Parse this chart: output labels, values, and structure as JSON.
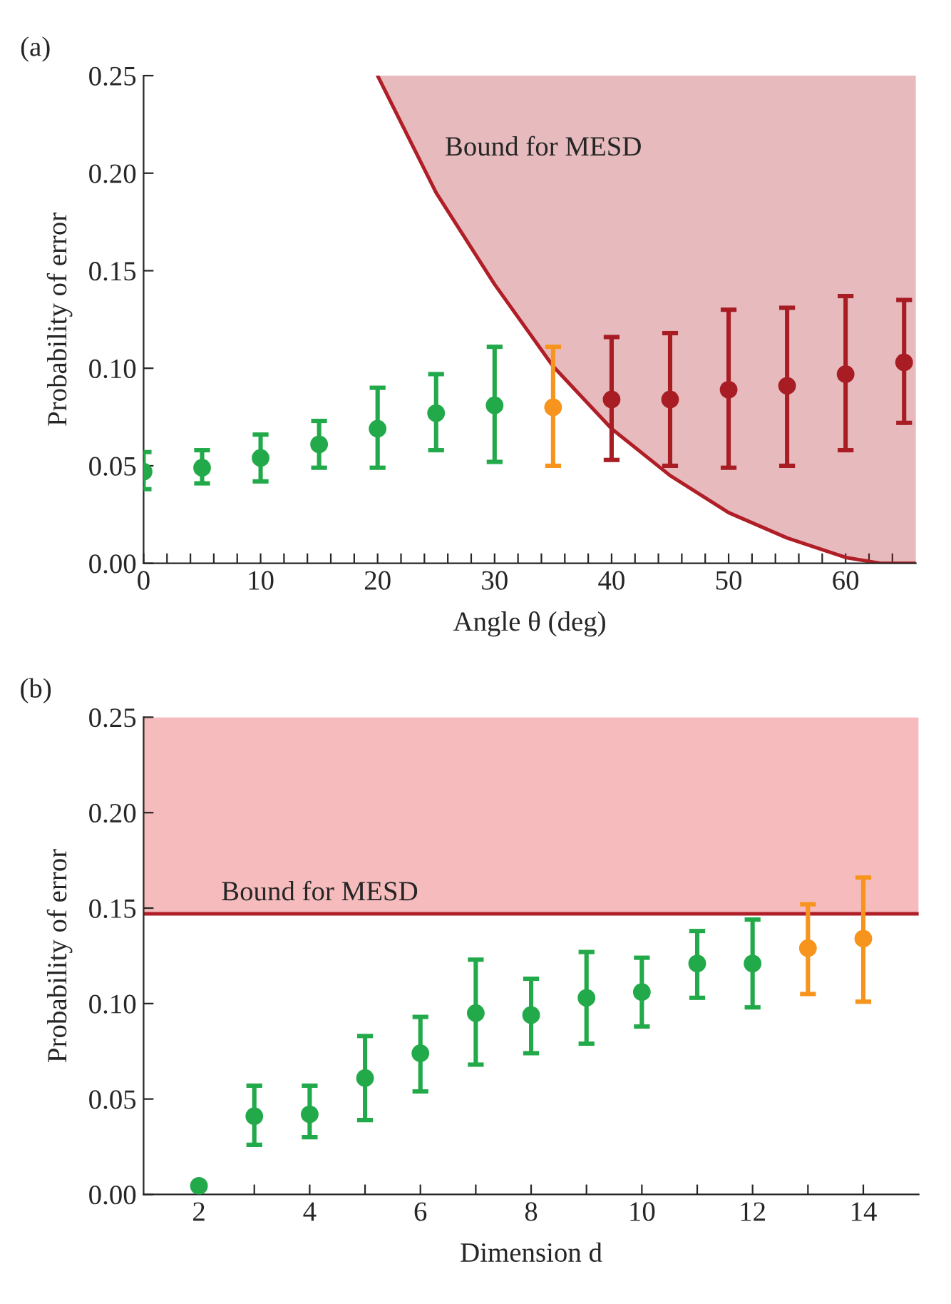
{
  "chart_data": [
    {
      "type": "scatter",
      "title": "(a)",
      "xlabel": "Angle θ (deg)",
      "ylabel": "Probability of error",
      "xlim": [
        0,
        66
      ],
      "ylim": [
        0,
        0.25
      ],
      "xticks": [
        0,
        {
          "value": 2,
          "label": null
        },
        {
          "value": 4,
          "label": null
        },
        {
          "value": 6,
          "label": null
        },
        {
          "value": 8,
          "label": null
        },
        10,
        {
          "value": 12,
          "label": null
        },
        {
          "value": 14,
          "label": null
        },
        {
          "value": 16,
          "label": null
        },
        {
          "value": 18,
          "label": null
        },
        20,
        {
          "value": 22,
          "label": null
        },
        {
          "value": 24,
          "label": null
        },
        {
          "value": 26,
          "label": null
        },
        {
          "value": 28,
          "label": null
        },
        30,
        {
          "value": 32,
          "label": null
        },
        {
          "value": 34,
          "label": null
        },
        {
          "value": 36,
          "label": null
        },
        {
          "value": 38,
          "label": null
        },
        40,
        {
          "value": 42,
          "label": null
        },
        {
          "value": 44,
          "label": null
        },
        {
          "value": 46,
          "label": null
        },
        {
          "value": 48,
          "label": null
        },
        50,
        {
          "value": 52,
          "label": null
        },
        {
          "value": 54,
          "label": null
        },
        {
          "value": 56,
          "label": null
        },
        {
          "value": 58,
          "label": null
        },
        60,
        {
          "value": 62,
          "label": null
        },
        {
          "value": 64,
          "label": null
        }
      ],
      "yticks": [
        {
          "value": 0,
          "label": "0.00"
        },
        {
          "value": 0.05,
          "label": "0.05"
        },
        {
          "value": 0.1,
          "label": "0.10"
        },
        {
          "value": 0.15,
          "label": "0.15"
        },
        {
          "value": 0.2,
          "label": "0.20"
        },
        {
          "value": 0.25,
          "label": "0.25"
        }
      ],
      "grid": false,
      "legend": false,
      "marker": "circle",
      "series": [
        {
          "type": "line",
          "marker": "none",
          "color": "#b01f27",
          "x": [
            20,
            25,
            30,
            35,
            40,
            45,
            50,
            55,
            60,
            63,
            66
          ],
          "values": [
            0.25,
            0.19,
            0.143,
            0.101,
            0.069,
            0.045,
            0.026,
            0.013,
            0.003,
            0,
            0
          ],
          "lower": [
            0.25,
            0.19,
            0.143,
            0.101,
            0.069,
            0.045,
            0.026,
            0.013,
            0.003,
            0,
            0
          ],
          "upper": [
            0.25,
            0.25,
            0.25,
            0.25,
            0.25,
            0.25,
            0.25,
            0.25,
            0.25,
            0.25,
            0.25
          ]
        },
        {
          "color": "#22aa4a",
          "x": [
            0,
            5,
            10,
            15,
            20,
            25,
            30
          ],
          "values": [
            0.047,
            0.049,
            0.054,
            0.061,
            0.069,
            0.077,
            0.081
          ],
          "errors": [
            [
              0.038,
              0.057
            ],
            [
              0.041,
              0.058
            ],
            [
              0.042,
              0.066
            ],
            [
              0.049,
              0.073
            ],
            [
              0.049,
              0.09
            ],
            [
              0.058,
              0.097
            ],
            [
              0.052,
              0.111
            ]
          ]
        },
        {
          "color": "#f7941d",
          "x": [
            35
          ],
          "values": [
            0.08
          ],
          "errors": [
            [
              0.05,
              0.111
            ]
          ]
        },
        {
          "color": "#a81c24",
          "x": [
            40,
            45,
            50,
            55,
            60,
            65
          ],
          "values": [
            0.084,
            0.084,
            0.089,
            0.091,
            0.097,
            0.103
          ],
          "errors": [
            [
              0.053,
              0.116
            ],
            [
              0.05,
              0.118
            ],
            [
              0.049,
              0.13
            ],
            [
              0.05,
              0.131
            ],
            [
              0.058,
              0.137
            ],
            [
              0.072,
              0.135
            ]
          ]
        }
      ],
      "annotations": [
        "Bound for MESD"
      ]
    },
    {
      "type": "scatter",
      "title": "(b)",
      "xlabel": "Dimension d",
      "ylabel": "Probability of error",
      "xlim": [
        1,
        15
      ],
      "ylim": [
        0,
        0.25
      ],
      "xticks": [
        2,
        {
          "value": 3,
          "label": null
        },
        4,
        {
          "value": 5,
          "label": null
        },
        6,
        {
          "value": 7,
          "label": null
        },
        8,
        {
          "value": 9,
          "label": null
        },
        10,
        {
          "value": 11,
          "label": null
        },
        12,
        {
          "value": 13,
          "label": null
        },
        14
      ],
      "yticks": [
        {
          "value": 0,
          "label": "0.00"
        },
        {
          "value": 0.05,
          "label": "0.05"
        },
        {
          "value": 0.1,
          "label": "0.10"
        },
        {
          "value": 0.15,
          "label": "0.15"
        },
        {
          "value": 0.2,
          "label": "0.20"
        },
        {
          "value": 0.25,
          "label": "0.25"
        }
      ],
      "grid": false,
      "legend": false,
      "marker": "circle",
      "bands": [
        {
          "axis": "y",
          "from": 0.147,
          "to": 0.25,
          "color": "#f6bcbd"
        }
      ],
      "ref_lines": [
        {
          "axis": "y",
          "value": 0.147,
          "label": "Bound for MESD",
          "color": "#b01f27"
        }
      ],
      "series": [
        {
          "color": "#22aa4a",
          "x": [
            2,
            3,
            4,
            5,
            6,
            7,
            8,
            9,
            10,
            11,
            12
          ],
          "values": [
            0.0045,
            0.041,
            0.042,
            0.061,
            0.074,
            0.095,
            0.094,
            0.103,
            0.106,
            0.121,
            0.121
          ],
          "errors": [
            null,
            [
              0.026,
              0.057
            ],
            [
              0.03,
              0.057
            ],
            [
              0.039,
              0.083
            ],
            [
              0.054,
              0.093
            ],
            [
              0.068,
              0.123
            ],
            [
              0.074,
              0.113
            ],
            [
              0.079,
              0.127
            ],
            [
              0.088,
              0.124
            ],
            [
              0.103,
              0.138
            ],
            [
              0.098,
              0.144
            ]
          ]
        },
        {
          "color": "#f7941d",
          "x": [
            13,
            14
          ],
          "values": [
            0.129,
            0.134
          ],
          "errors": [
            [
              0.105,
              0.152
            ],
            [
              0.101,
              0.166
            ]
          ]
        }
      ]
    }
  ]
}
